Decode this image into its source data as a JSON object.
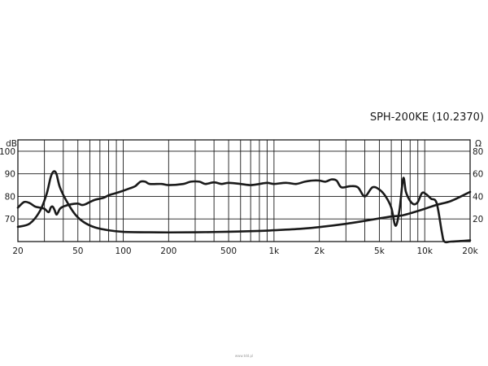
{
  "chart_data": {
    "type": "line",
    "title": "SPH-200KE  (10.2370)",
    "x_scale": "log",
    "xlim": [
      20,
      20000
    ],
    "x_ticks": [
      {
        "value": 20,
        "label": "20"
      },
      {
        "value": 50,
        "label": "50"
      },
      {
        "value": 100,
        "label": "100"
      },
      {
        "value": 200,
        "label": "200"
      },
      {
        "value": 500,
        "label": "500"
      },
      {
        "value": 1000,
        "label": "1k"
      },
      {
        "value": 2000,
        "label": "2k"
      },
      {
        "value": 5000,
        "label": "5k"
      },
      {
        "value": 10000,
        "label": "10k"
      },
      {
        "value": 20000,
        "label": "20k"
      }
    ],
    "y_left": {
      "unit": "dB",
      "range": [
        60,
        105
      ],
      "ticks": [
        {
          "value": 100,
          "label": "100"
        },
        {
          "value": 90,
          "label": "90"
        },
        {
          "value": 80,
          "label": "80"
        },
        {
          "value": 70,
          "label": "70"
        }
      ]
    },
    "y_right": {
      "unit": "Ω",
      "range": [
        0,
        90
      ],
      "ticks": [
        {
          "value": 80,
          "label": "80"
        },
        {
          "value": 60,
          "label": "60"
        },
        {
          "value": 40,
          "label": "40"
        },
        {
          "value": 20,
          "label": "20"
        }
      ]
    },
    "grid": true,
    "line_color": "#1a1a1a",
    "series": [
      {
        "axis": "left",
        "points": [
          [
            20,
            75
          ],
          [
            22,
            77.5
          ],
          [
            24,
            77
          ],
          [
            26,
            75.5
          ],
          [
            28,
            75
          ],
          [
            30,
            74.5
          ],
          [
            32,
            73
          ],
          [
            33,
            75
          ],
          [
            34,
            75.5
          ],
          [
            35,
            74
          ],
          [
            36,
            72
          ],
          [
            37,
            73
          ],
          [
            38,
            74.5
          ],
          [
            40,
            75.5
          ],
          [
            45,
            76.5
          ],
          [
            50,
            76.8
          ],
          [
            53,
            76.2
          ],
          [
            56,
            76.5
          ],
          [
            60,
            77.5
          ],
          [
            65,
            78.5
          ],
          [
            70,
            79
          ],
          [
            75,
            79.5
          ],
          [
            80,
            80.5
          ],
          [
            90,
            81.5
          ],
          [
            100,
            82.5
          ],
          [
            110,
            83.5
          ],
          [
            120,
            84.5
          ],
          [
            130,
            86.5
          ],
          [
            140,
            86.5
          ],
          [
            150,
            85.5
          ],
          [
            180,
            85.5
          ],
          [
            200,
            85
          ],
          [
            250,
            85.5
          ],
          [
            280,
            86.5
          ],
          [
            320,
            86.5
          ],
          [
            350,
            85.5
          ],
          [
            400,
            86.2
          ],
          [
            450,
            85.5
          ],
          [
            500,
            86
          ],
          [
            600,
            85.5
          ],
          [
            700,
            85
          ],
          [
            800,
            85.5
          ],
          [
            900,
            86
          ],
          [
            1000,
            85.5
          ],
          [
            1200,
            86
          ],
          [
            1400,
            85.5
          ],
          [
            1600,
            86.5
          ],
          [
            1800,
            87
          ],
          [
            2000,
            87
          ],
          [
            2200,
            86.5
          ],
          [
            2400,
            87.5
          ],
          [
            2600,
            87
          ],
          [
            2800,
            84
          ],
          [
            3200,
            84.5
          ],
          [
            3600,
            84
          ],
          [
            4000,
            80
          ],
          [
            4500,
            84
          ],
          [
            5000,
            83
          ],
          [
            5500,
            80
          ],
          [
            6000,
            75
          ],
          [
            6400,
            67
          ],
          [
            6800,
            74
          ],
          [
            7200,
            88
          ],
          [
            7500,
            82
          ],
          [
            8000,
            78
          ],
          [
            8500,
            76.5
          ],
          [
            9000,
            77.5
          ],
          [
            9600,
            81.5
          ],
          [
            10200,
            81
          ],
          [
            11000,
            79
          ],
          [
            12000,
            77
          ],
          [
            13000,
            64
          ],
          [
            13500,
            60
          ],
          [
            15000,
            60
          ],
          [
            20000,
            60.5
          ]
        ]
      },
      {
        "axis": "right",
        "points": [
          [
            20,
            13
          ],
          [
            24,
            16
          ],
          [
            28,
            27
          ],
          [
            31,
            42
          ],
          [
            33,
            57
          ],
          [
            34.5,
            62
          ],
          [
            36,
            60
          ],
          [
            38,
            48
          ],
          [
            42,
            36
          ],
          [
            48,
            24
          ],
          [
            55,
            17
          ],
          [
            65,
            12.5
          ],
          [
            80,
            10
          ],
          [
            100,
            8.6
          ],
          [
            150,
            8.2
          ],
          [
            200,
            8.1
          ],
          [
            300,
            8.2
          ],
          [
            500,
            8.7
          ],
          [
            800,
            9.4
          ],
          [
            1000,
            10
          ],
          [
            1500,
            11.3
          ],
          [
            2000,
            12.8
          ],
          [
            3000,
            15.7
          ],
          [
            4000,
            18.3
          ],
          [
            5000,
            20.5
          ],
          [
            6000,
            22.2
          ],
          [
            7000,
            23
          ],
          [
            8000,
            25
          ],
          [
            10000,
            29
          ],
          [
            12000,
            32.5
          ],
          [
            15000,
            36
          ],
          [
            20000,
            44
          ]
        ]
      }
    ]
  },
  "footer": {
    "watermark": "www.tdd.pl"
  }
}
